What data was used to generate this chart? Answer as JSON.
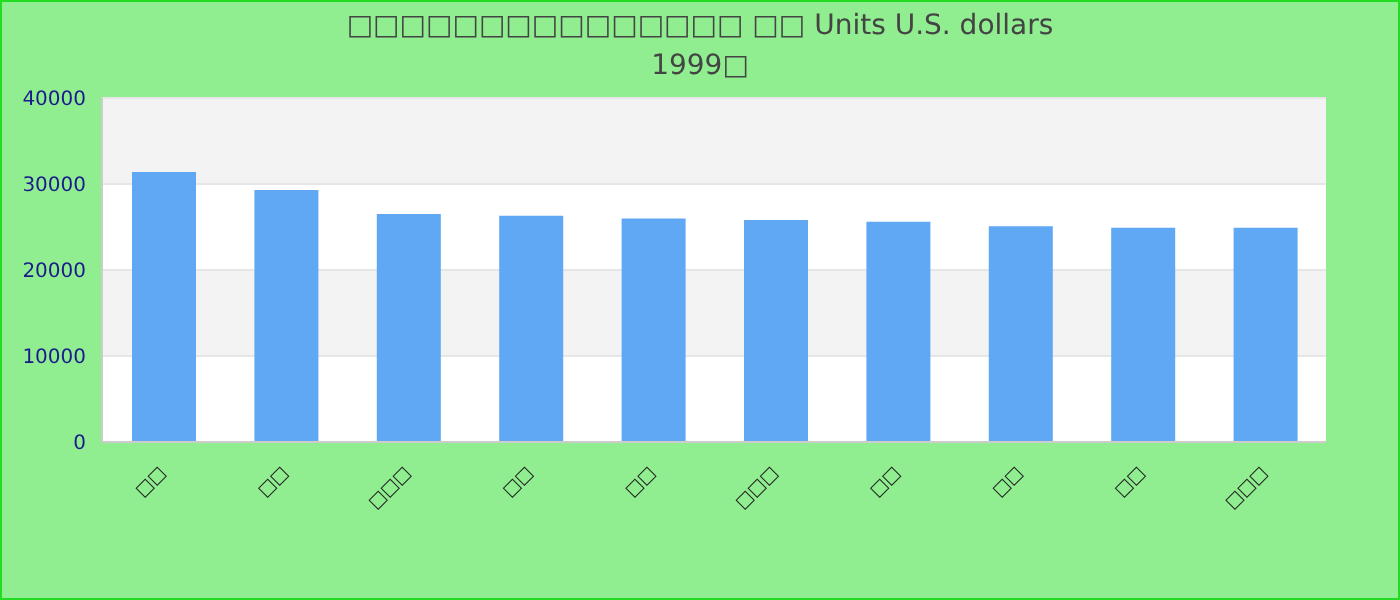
{
  "chart_data": {
    "type": "bar",
    "title": "□□□□□□□□□□□□□□□ □□ Units U.S. dollars",
    "subtitle": "1999□",
    "categories": [
      "□□",
      "□□",
      "□□□",
      "□□",
      "□□",
      "□□□",
      "□□",
      "□□",
      "□□",
      "□□□"
    ],
    "values": [
      31400,
      29300,
      26500,
      26300,
      26000,
      25800,
      25600,
      25100,
      24900,
      24900
    ],
    "color": "#60a8f4",
    "ylim": [
      0,
      40000
    ],
    "yticks": [
      0,
      10000,
      20000,
      30000,
      40000
    ],
    "grid": "y"
  }
}
